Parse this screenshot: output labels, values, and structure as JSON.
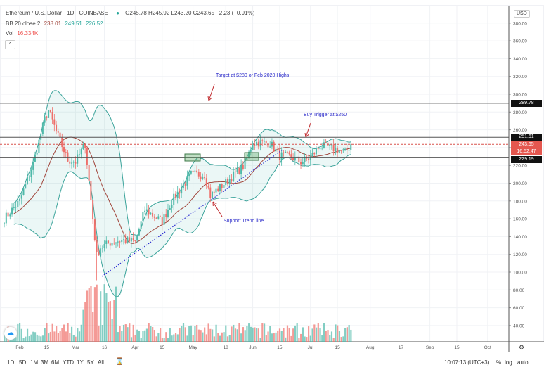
{
  "legend": {
    "symbol": "Ethereum / U.S. Dollar · 1D · COINBASE",
    "ohlc": "O245.78 H245.92 L243.20 C243.65 −2.23 (−0.91%)",
    "bb_label": "BB 20 close 2",
    "bb_basis": "238.01",
    "bb_upper": "249.51",
    "bb_lower": "226.52",
    "vol_label": "Vol",
    "vol_value": "16.334K",
    "collapse": "^"
  },
  "price_axis": {
    "currency": "USD",
    "ticks": [
      "380.00",
      "360.00",
      "340.00",
      "320.00",
      "300.00",
      "280.00",
      "260.00",
      "240.00",
      "220.00",
      "200.00",
      "180.00",
      "160.00",
      "140.00",
      "120.00",
      "100.00",
      "80.00",
      "60.00",
      "40.00"
    ],
    "tags": {
      "target": "289.78",
      "trigger": "251.61",
      "last": "243.65",
      "countdown": "16:52:47",
      "support": "229.19"
    }
  },
  "time_axis": {
    "ticks": [
      "Feb",
      "15",
      "Mar",
      "16",
      "Apr",
      "15",
      "May",
      "18",
      "Jun",
      "15",
      "Jul",
      "15",
      "Aug",
      "17",
      "Sep",
      "15",
      "Oct"
    ]
  },
  "annotations": {
    "target": "Target at $280 or Feb 2020 Highs",
    "trigger": "Buy Trigger at $250",
    "support": "Support Trend line"
  },
  "toolbar": {
    "timeframes": [
      "1D",
      "5D",
      "1M",
      "3M",
      "6M",
      "YTD",
      "1Y",
      "5Y",
      "All"
    ],
    "clock": "10:07:13 (UTC+3)",
    "percent": "%",
    "log": "log",
    "auto": "auto"
  },
  "colors": {
    "up": "#4fb9a9",
    "down": "#ef6f6a",
    "band": "#3aa39a",
    "basis": "#a1463c",
    "annot": "#2929c9",
    "arrow": "#c0282b"
  },
  "chart_data": {
    "type": "candlestick",
    "title": "Ethereum / U.S. Dollar · 1D · COINBASE",
    "ylim": [
      30,
      390
    ],
    "levels": [
      289.78,
      251.61,
      243.65,
      229.19
    ],
    "close_keyframes": [
      [
        "2020-01-24",
        160
      ],
      [
        "2020-02-01",
        180
      ],
      [
        "2020-02-08",
        222
      ],
      [
        "2020-02-14",
        272
      ],
      [
        "2020-02-16",
        282
      ],
      [
        "2020-02-20",
        258
      ],
      [
        "2020-02-26",
        226
      ],
      [
        "2020-03-01",
        224
      ],
      [
        "2020-03-06",
        244
      ],
      [
        "2020-03-08",
        202
      ],
      [
        "2020-03-12",
        118
      ],
      [
        "2020-03-14",
        128
      ],
      [
        "2020-03-20",
        134
      ],
      [
        "2020-03-25",
        136
      ],
      [
        "2020-04-01",
        134
      ],
      [
        "2020-04-06",
        170
      ],
      [
        "2020-04-15",
        157
      ],
      [
        "2020-04-20",
        180
      ],
      [
        "2020-04-30",
        210
      ],
      [
        "2020-05-07",
        210
      ],
      [
        "2020-05-10",
        186
      ],
      [
        "2020-05-20",
        205
      ],
      [
        "2020-05-28",
        221
      ],
      [
        "2020-06-01",
        246
      ],
      [
        "2020-06-10",
        245
      ],
      [
        "2020-06-15",
        231
      ],
      [
        "2020-06-20",
        230
      ],
      [
        "2020-06-26",
        224
      ],
      [
        "2020-07-01",
        229
      ],
      [
        "2020-07-06",
        242
      ],
      [
        "2020-07-15",
        238
      ],
      [
        "2020-07-19",
        234
      ],
      [
        "2020-07-22",
        243.65
      ]
    ]
  }
}
